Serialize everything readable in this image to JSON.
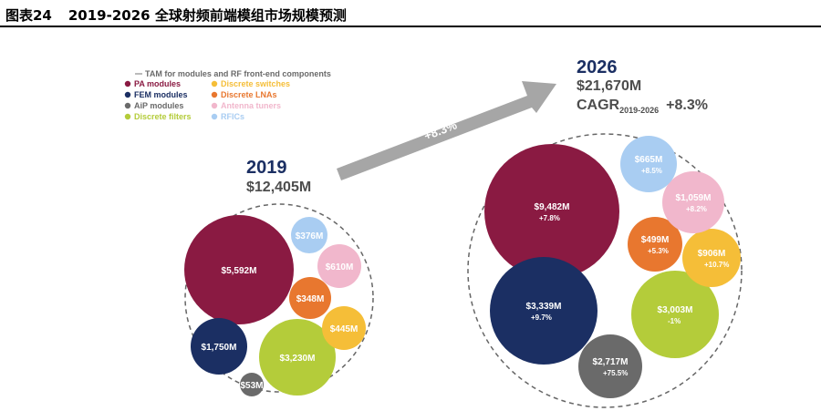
{
  "figure": {
    "number_label": "图表24",
    "title": "2019-2026 全球射频前端模组市场规模预测"
  },
  "colors": {
    "pa_modules": "#8a1a42",
    "fem_modules": "#1b2f63",
    "aip_modules": "#6a6a6a",
    "discrete_filters": "#b4cc3a",
    "discrete_switches": "#f5be38",
    "discrete_lnas": "#e8772f",
    "antenna_tuners": "#f1b7cc",
    "rfics": "#a9cdf2",
    "arrow": "#a6a6a6",
    "year_text": "#1b2f63",
    "total_text": "#4d4d4d"
  },
  "chart_data": {
    "type": "bubble",
    "legend": {
      "tam_label": "TAM for modules and RF front-end components",
      "placement": "top-left",
      "entries": [
        {
          "key": "pa_modules",
          "label": "PA modules"
        },
        {
          "key": "discrete_switches",
          "label": "Discrete switches"
        },
        {
          "key": "fem_modules",
          "label": "FEM modules"
        },
        {
          "key": "discrete_lnas",
          "label": "Discrete LNAs"
        },
        {
          "key": "aip_modules",
          "label": "AiP modules"
        },
        {
          "key": "antenna_tuners",
          "label": "Antenna tuners"
        },
        {
          "key": "discrete_filters",
          "label": "Discrete filters"
        },
        {
          "key": "rfics",
          "label": "RFICs"
        }
      ]
    },
    "arrow_label": "+8.3%",
    "years": [
      {
        "year": "2019",
        "total": "$12,405M",
        "segments": [
          {
            "key": "pa_modules",
            "value": 5592,
            "label": "$5,592M"
          },
          {
            "key": "fem_modules",
            "value": 1750,
            "label": "$1,750M"
          },
          {
            "key": "discrete_filters",
            "value": 3230,
            "label": "$3,230M"
          },
          {
            "key": "aip_modules",
            "value": 53,
            "label": "$53M"
          },
          {
            "key": "discrete_switches",
            "value": 445,
            "label": "$445M"
          },
          {
            "key": "discrete_lnas",
            "value": 348,
            "label": "$348M"
          },
          {
            "key": "antenna_tuners",
            "value": 610,
            "label": "$610M"
          },
          {
            "key": "rfics",
            "value": 376,
            "label": "$376M"
          }
        ]
      },
      {
        "year": "2026",
        "total": "$21,670M",
        "cagr_label": "CAGR",
        "cagr_period": "2019-2026",
        "cagr_value": "+8.3%",
        "segments": [
          {
            "key": "pa_modules",
            "value": 9482,
            "label": "$9,482M",
            "growth": "+7.8%"
          },
          {
            "key": "fem_modules",
            "value": 3339,
            "label": "$3,339M",
            "growth": "+9.7%"
          },
          {
            "key": "discrete_filters",
            "value": 3003,
            "label": "$3,003M",
            "growth": "-1%"
          },
          {
            "key": "aip_modules",
            "value": 2717,
            "label": "$2,717M",
            "growth": "+75.5%"
          },
          {
            "key": "discrete_switches",
            "value": 906,
            "label": "$906M",
            "growth": "+10.7%"
          },
          {
            "key": "discrete_lnas",
            "value": 499,
            "label": "$499M",
            "growth": "+5.3%"
          },
          {
            "key": "antenna_tuners",
            "value": 1059,
            "label": "$1,059M",
            "growth": "+8.2%"
          },
          {
            "key": "rfics",
            "value": 665,
            "label": "$665M",
            "growth": "+8.5%"
          }
        ]
      }
    ]
  }
}
